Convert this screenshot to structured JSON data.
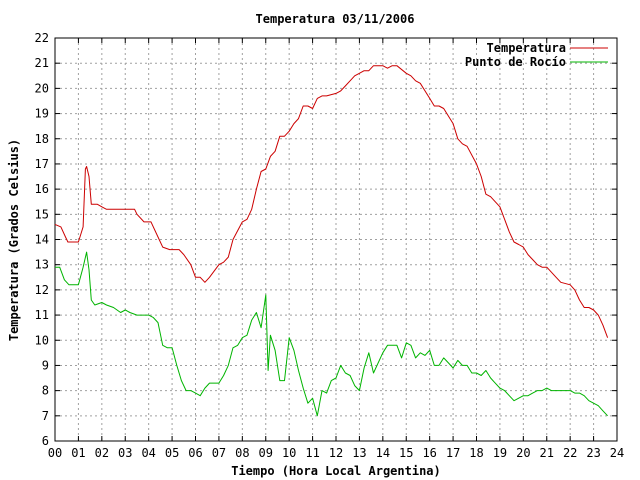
{
  "chart_data": {
    "type": "line",
    "title": "Temperatura 03/11/2006",
    "xlabel": "Tiempo (Hora Local Argentina)",
    "ylabel": "Temperatura (Grados Celsius)",
    "xlim": [
      0,
      24
    ],
    "ylim": [
      6,
      22
    ],
    "x_ticks": [
      0,
      1,
      2,
      3,
      4,
      5,
      6,
      7,
      8,
      9,
      10,
      11,
      12,
      13,
      14,
      15,
      16,
      17,
      18,
      19,
      20,
      21,
      22,
      23,
      24
    ],
    "x_tick_labels": [
      "00",
      "01",
      "02",
      "03",
      "04",
      "05",
      "06",
      "07",
      "08",
      "09",
      "10",
      "11",
      "12",
      "13",
      "14",
      "15",
      "16",
      "17",
      "18",
      "19",
      "20",
      "21",
      "22",
      "23",
      "24"
    ],
    "y_ticks": [
      6,
      7,
      8,
      9,
      10,
      11,
      12,
      13,
      14,
      15,
      16,
      17,
      18,
      19,
      20,
      21,
      22
    ],
    "y_tick_labels": [
      "6",
      "7",
      "8",
      "9",
      "10",
      "11",
      "12",
      "13",
      "14",
      "15",
      "16",
      "17",
      "18",
      "19",
      "20",
      "21",
      "22"
    ],
    "grid": true,
    "legend_position": "top-right",
    "series": [
      {
        "name": "Temperatura",
        "color": "#cc0000",
        "x": [
          0.0,
          0.25,
          0.45,
          0.55,
          1.0,
          1.2,
          1.3,
          1.35,
          1.45,
          1.55,
          1.8,
          2.0,
          2.2,
          2.5,
          3.0,
          3.4,
          3.5,
          3.8,
          4.0,
          4.1,
          4.4,
          4.6,
          4.9,
          5.1,
          5.3,
          5.5,
          5.8,
          6.0,
          6.2,
          6.4,
          6.6,
          7.0,
          7.2,
          7.4,
          7.6,
          8.0,
          8.2,
          8.4,
          8.6,
          8.8,
          9.0,
          9.2,
          9.4,
          9.6,
          9.8,
          10.0,
          10.2,
          10.4,
          10.6,
          10.8,
          11.0,
          11.2,
          11.4,
          11.6,
          12.0,
          12.2,
          12.4,
          12.6,
          12.8,
          13.0,
          13.2,
          13.4,
          13.6,
          14.0,
          14.2,
          14.4,
          14.6,
          15.0,
          15.2,
          15.4,
          15.6,
          15.8,
          16.0,
          16.2,
          16.4,
          16.6,
          17.0,
          17.2,
          17.4,
          17.6,
          18.0,
          18.2,
          18.4,
          18.6,
          19.0,
          19.2,
          19.4,
          19.6,
          19.8,
          20.0,
          20.2,
          20.4,
          20.6,
          20.8,
          21.0,
          21.2,
          21.4,
          21.6,
          22.0,
          22.2,
          22.4,
          22.6,
          22.8,
          23.0,
          23.2,
          23.4,
          23.6
        ],
        "y": [
          14.6,
          14.5,
          14.1,
          13.9,
          13.9,
          14.5,
          16.8,
          16.9,
          16.5,
          15.4,
          15.4,
          15.3,
          15.2,
          15.2,
          15.2,
          15.2,
          15.0,
          14.7,
          14.7,
          14.7,
          14.1,
          13.7,
          13.6,
          13.6,
          13.6,
          13.4,
          13.0,
          12.5,
          12.5,
          12.3,
          12.5,
          13.0,
          13.1,
          13.3,
          14.0,
          14.7,
          14.8,
          15.2,
          16.0,
          16.7,
          16.8,
          17.3,
          17.5,
          18.1,
          18.1,
          18.3,
          18.6,
          18.8,
          19.3,
          19.3,
          19.2,
          19.6,
          19.7,
          19.7,
          19.8,
          19.9,
          20.1,
          20.3,
          20.5,
          20.6,
          20.7,
          20.7,
          20.9,
          20.9,
          20.8,
          20.9,
          20.9,
          20.6,
          20.5,
          20.3,
          20.2,
          19.9,
          19.6,
          19.3,
          19.3,
          19.2,
          18.6,
          18.0,
          17.8,
          17.7,
          17.0,
          16.5,
          15.8,
          15.7,
          15.3,
          14.8,
          14.3,
          13.9,
          13.8,
          13.7,
          13.4,
          13.2,
          13.0,
          12.9,
          12.9,
          12.7,
          12.5,
          12.3,
          12.2,
          12.0,
          11.6,
          11.3,
          11.3,
          11.2,
          11.0,
          10.6,
          10.1
        ]
      },
      {
        "name": "Punto de Rocío",
        "color": "#00b400",
        "x": [
          0.0,
          0.2,
          0.4,
          0.6,
          1.0,
          1.2,
          1.35,
          1.45,
          1.55,
          1.7,
          2.0,
          2.2,
          2.5,
          2.8,
          3.0,
          3.2,
          3.5,
          3.8,
          4.0,
          4.2,
          4.4,
          4.6,
          4.8,
          5.0,
          5.2,
          5.4,
          5.6,
          5.8,
          6.0,
          6.2,
          6.4,
          6.6,
          7.0,
          7.2,
          7.4,
          7.6,
          7.8,
          8.0,
          8.2,
          8.4,
          8.6,
          8.8,
          9.0,
          9.1,
          9.2,
          9.4,
          9.6,
          9.8,
          10.0,
          10.2,
          10.4,
          10.6,
          10.8,
          11.0,
          11.2,
          11.4,
          11.6,
          11.8,
          12.0,
          12.2,
          12.4,
          12.6,
          12.8,
          13.0,
          13.2,
          13.4,
          13.6,
          14.0,
          14.2,
          14.4,
          14.6,
          14.8,
          15.0,
          15.2,
          15.4,
          15.6,
          15.8,
          16.0,
          16.2,
          16.4,
          16.6,
          16.8,
          17.0,
          17.2,
          17.4,
          17.6,
          17.8,
          18.0,
          18.2,
          18.4,
          18.6,
          18.8,
          19.0,
          19.2,
          19.4,
          19.6,
          19.8,
          20.0,
          20.2,
          20.4,
          20.6,
          20.8,
          21.0,
          21.2,
          21.4,
          21.6,
          22.0,
          22.2,
          22.4,
          22.6,
          22.8,
          23.0,
          23.2,
          23.4,
          23.6
        ],
        "y": [
          12.9,
          12.9,
          12.4,
          12.2,
          12.2,
          12.9,
          13.5,
          12.8,
          11.6,
          11.4,
          11.5,
          11.4,
          11.3,
          11.1,
          11.2,
          11.1,
          11.0,
          11.0,
          11.0,
          10.9,
          10.7,
          9.8,
          9.7,
          9.7,
          9.0,
          8.4,
          8.0,
          8.0,
          7.9,
          7.8,
          8.1,
          8.3,
          8.3,
          8.6,
          9.0,
          9.7,
          9.8,
          10.1,
          10.2,
          10.8,
          11.1,
          10.5,
          11.8,
          8.8,
          10.2,
          9.6,
          8.4,
          8.4,
          10.1,
          9.6,
          8.8,
          8.1,
          7.5,
          7.7,
          7.0,
          8.0,
          7.9,
          8.4,
          8.5,
          9.0,
          8.7,
          8.6,
          8.2,
          8.0,
          8.9,
          9.5,
          8.7,
          9.5,
          9.8,
          9.8,
          9.8,
          9.3,
          9.9,
          9.8,
          9.3,
          9.5,
          9.4,
          9.6,
          9.0,
          9.0,
          9.3,
          9.1,
          8.9,
          9.2,
          9.0,
          9.0,
          8.7,
          8.7,
          8.6,
          8.8,
          8.5,
          8.3,
          8.1,
          8.0,
          7.8,
          7.6,
          7.7,
          7.8,
          7.8,
          7.9,
          8.0,
          8.0,
          8.1,
          8.0,
          8.0,
          8.0,
          8.0,
          7.9,
          7.9,
          7.8,
          7.6,
          7.5,
          7.4,
          7.2,
          7.0
        ]
      }
    ]
  }
}
